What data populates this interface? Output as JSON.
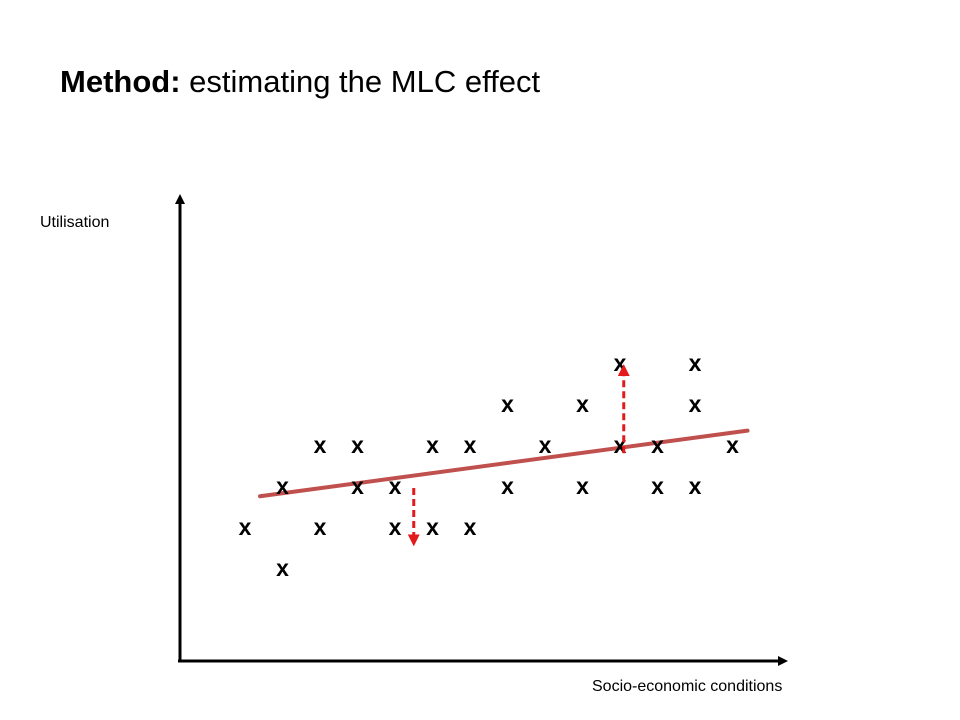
{
  "title": {
    "bold": "Method:",
    "rest": "estimating the MLC effect"
  },
  "axes": {
    "y_label": "Utilisation",
    "x_label": "Socio-economic conditions"
  },
  "marker_symbol": "x",
  "colors": {
    "trend_line": "#c0504d",
    "residual_arrow": "#e31a1c",
    "axis": "#000000"
  },
  "chart_data": {
    "type": "scatter",
    "grid": false,
    "legend": "none",
    "points": [
      {
        "x": 1.0,
        "y": 1.0
      },
      {
        "x": 2.0,
        "y": 1.0
      },
      {
        "x": 3.0,
        "y": 1.0
      },
      {
        "x": 3.5,
        "y": 1.0
      },
      {
        "x": 4.0,
        "y": 1.0
      },
      {
        "x": 1.5,
        "y": 0.0
      },
      {
        "x": 1.5,
        "y": 2.0
      },
      {
        "x": 2.5,
        "y": 2.0
      },
      {
        "x": 3.0,
        "y": 2.0
      },
      {
        "x": 4.5,
        "y": 2.0
      },
      {
        "x": 5.5,
        "y": 2.0
      },
      {
        "x": 6.5,
        "y": 2.0
      },
      {
        "x": 7.0,
        "y": 2.0
      },
      {
        "x": 2.0,
        "y": 3.0
      },
      {
        "x": 2.5,
        "y": 3.0
      },
      {
        "x": 3.5,
        "y": 3.0
      },
      {
        "x": 4.0,
        "y": 3.0
      },
      {
        "x": 5.0,
        "y": 3.0
      },
      {
        "x": 6.0,
        "y": 3.0
      },
      {
        "x": 6.5,
        "y": 3.0
      },
      {
        "x": 7.5,
        "y": 3.0
      },
      {
        "x": 4.5,
        "y": 4.0
      },
      {
        "x": 5.5,
        "y": 4.0
      },
      {
        "x": 7.0,
        "y": 4.0
      },
      {
        "x": 6.0,
        "y": 5.0
      },
      {
        "x": 7.0,
        "y": 5.0
      }
    ],
    "trend_line": {
      "x": [
        1.2,
        7.7
      ],
      "y": [
        1.75,
        3.35
      ]
    },
    "residual_arrows": [
      {
        "x": 3.25,
        "from_y": 1.95,
        "to_y": 0.6
      },
      {
        "x": 6.05,
        "from_y": 2.8,
        "to_y": 4.9
      }
    ]
  }
}
